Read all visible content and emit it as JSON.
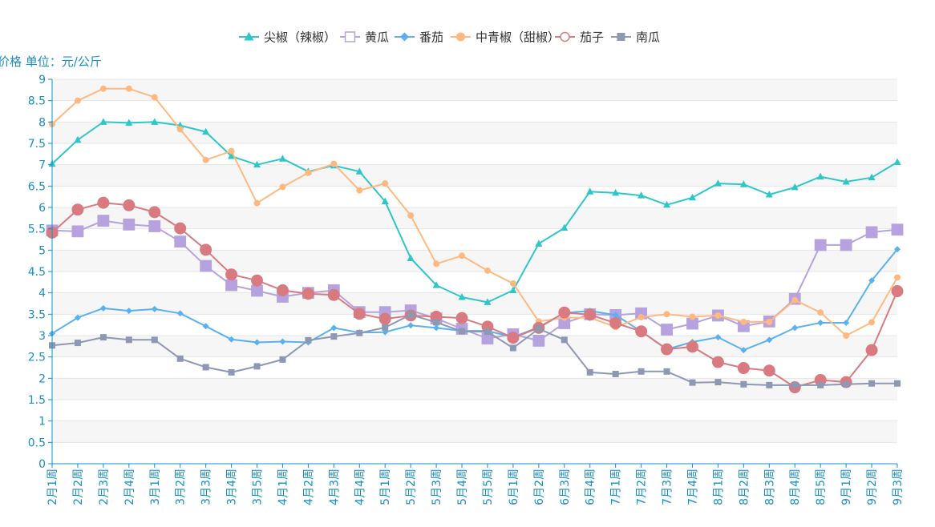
{
  "colors": {
    "axis": "#1a8fc4",
    "band": "#f6f6f6",
    "grid": "#e6e6e6"
  },
  "chart_data": {
    "type": "line",
    "ylabel": "价格 单位：元/公斤",
    "ylim": [
      0,
      9
    ],
    "y_ticks": [
      "0",
      "0.5",
      "1",
      "1.5",
      "2",
      "2.5",
      "3",
      "3.5",
      "4",
      "4.5",
      "5",
      "5.5",
      "6",
      "6.5",
      "7",
      "7.5",
      "8",
      "8.5",
      "9"
    ],
    "legend_position": "top-center",
    "categories": [
      "2月1周",
      "2月2周",
      "2月3周",
      "2月4周",
      "3月1周",
      "3月2周",
      "3月3周",
      "3月4周",
      "3月5周",
      "4月1周",
      "4月2周",
      "4月3周",
      "4月4周",
      "5月1周",
      "5月2周",
      "5月3周",
      "5月4周",
      "5月5周",
      "6月1周",
      "6月2周",
      "6月3周",
      "6月4周",
      "7月1周",
      "7月2周",
      "7月3周",
      "7月4周",
      "8月1周",
      "8月2周",
      "8月3周",
      "8月4周",
      "8月5周",
      "9月1周",
      "9月2周",
      "9月3周"
    ],
    "series": [
      {
        "name": "尖椒（辣椒）",
        "color": "#2ec7c9",
        "marker": "triangle",
        "values": [
          7.02,
          7.58,
          8.0,
          7.98,
          8.0,
          7.92,
          7.77,
          7.2,
          7.0,
          7.14,
          6.84,
          6.98,
          6.84,
          6.14,
          4.81,
          4.18,
          3.9,
          3.78,
          4.06,
          5.15,
          5.52,
          6.37,
          6.34,
          6.28,
          6.06,
          6.23,
          6.56,
          6.54,
          6.3,
          6.47,
          6.72,
          6.6,
          6.7,
          7.06
        ]
      },
      {
        "name": "黄瓜",
        "color": "#b6a2de",
        "marker": "square-open",
        "values": [
          5.46,
          5.44,
          5.69,
          5.6,
          5.56,
          5.2,
          4.63,
          4.18,
          4.05,
          3.91,
          4.0,
          4.06,
          3.55,
          3.55,
          3.59,
          3.4,
          3.16,
          2.93,
          3.03,
          2.88,
          3.29,
          3.5,
          3.48,
          3.52,
          3.14,
          3.28,
          3.47,
          3.22,
          3.33,
          3.86,
          5.12,
          5.12,
          5.42,
          5.48
        ]
      },
      {
        "name": "番茄",
        "color": "#5ab1ef",
        "marker": "diamond",
        "values": [
          3.05,
          3.42,
          3.64,
          3.58,
          3.62,
          3.52,
          3.22,
          2.91,
          2.84,
          2.86,
          2.84,
          3.18,
          3.07,
          3.08,
          3.24,
          3.18,
          3.11,
          3.11,
          2.96,
          3.2,
          3.53,
          3.58,
          3.48,
          3.1,
          2.68,
          2.85,
          2.96,
          2.66,
          2.9,
          3.18,
          3.3,
          3.3,
          4.29,
          5.02
        ]
      },
      {
        "name": "中青椒（甜椒）",
        "color": "#ffb980",
        "marker": "circle",
        "values": [
          7.95,
          8.5,
          8.78,
          8.78,
          8.58,
          7.83,
          7.11,
          7.32,
          6.1,
          6.48,
          6.81,
          7.02,
          6.4,
          6.56,
          5.81,
          4.68,
          4.87,
          4.52,
          4.22,
          3.33,
          3.42,
          3.42,
          3.2,
          3.43,
          3.5,
          3.44,
          3.47,
          3.32,
          3.32,
          3.83,
          3.54,
          3.0,
          3.31,
          4.36
        ]
      },
      {
        "name": "茄子",
        "color": "#d87a80",
        "marker": "circle-open",
        "values": [
          5.41,
          5.95,
          6.11,
          6.05,
          5.89,
          5.51,
          5.01,
          4.43,
          4.29,
          4.06,
          3.98,
          3.95,
          3.51,
          3.39,
          3.47,
          3.44,
          3.41,
          3.21,
          2.95,
          3.18,
          3.54,
          3.49,
          3.29,
          3.1,
          2.68,
          2.74,
          2.38,
          2.24,
          2.18,
          1.79,
          1.96,
          1.91,
          2.66,
          4.04
        ]
      },
      {
        "name": "南瓜",
        "color": "#8d98b3",
        "marker": "square",
        "values": [
          2.77,
          2.83,
          2.96,
          2.9,
          2.9,
          2.46,
          2.26,
          2.14,
          2.28,
          2.44,
          2.89,
          2.98,
          3.06,
          3.19,
          3.49,
          3.31,
          3.1,
          3.09,
          2.71,
          3.16,
          2.9,
          2.14,
          2.1,
          2.16,
          2.16,
          1.9,
          1.91,
          1.86,
          1.84,
          1.84,
          1.84,
          1.86,
          1.88,
          1.88
        ]
      }
    ]
  }
}
